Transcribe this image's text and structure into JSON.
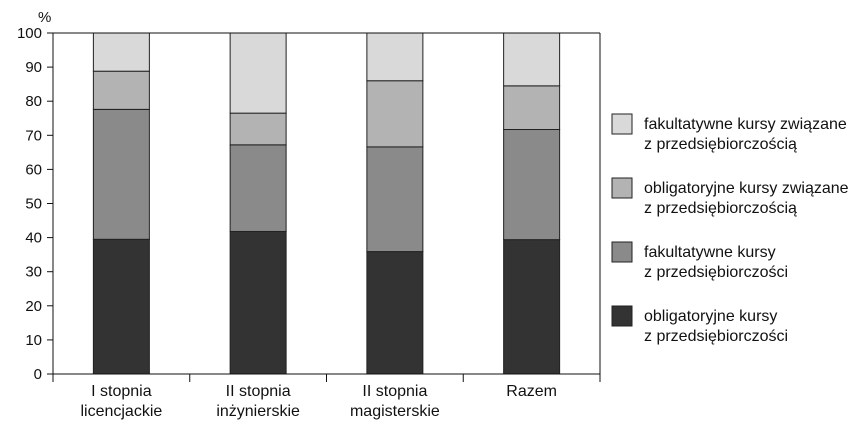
{
  "chart_data": {
    "type": "bar",
    "stacked": true,
    "ylabel": "%",
    "ylim": [
      0,
      100
    ],
    "yticks": [
      0,
      10,
      20,
      30,
      40,
      50,
      60,
      70,
      80,
      90,
      100
    ],
    "grid": false,
    "legend_position": "right",
    "categories": [
      [
        "I stopnia",
        "licencjackie"
      ],
      [
        "II stopnia",
        "inżynierskie"
      ],
      [
        "II stopnia",
        "magisterskie"
      ],
      [
        "Razem"
      ]
    ],
    "series": [
      {
        "name": [
          "obligatoryjne kursy",
          "z przedsiębiorczości"
        ],
        "color": "#333333",
        "values": [
          39.5,
          41.8,
          35.9,
          39.4
        ]
      },
      {
        "name": [
          "fakultatywne kursy",
          "z przedsiębiorczości"
        ],
        "color": "#8a8a8a",
        "values": [
          38.1,
          25.4,
          30.7,
          32.3
        ]
      },
      {
        "name": [
          "obligatoryjne  kursy związane",
          "z przedsiębiorczością"
        ],
        "color": "#b3b3b3",
        "values": [
          11.2,
          9.3,
          19.4,
          12.8
        ]
      },
      {
        "name": [
          "fakultatywne  kursy związane",
          "z przedsiębiorczością"
        ],
        "color": "#d9d9d9",
        "values": [
          11.2,
          23.5,
          14.0,
          15.5
        ]
      }
    ]
  }
}
